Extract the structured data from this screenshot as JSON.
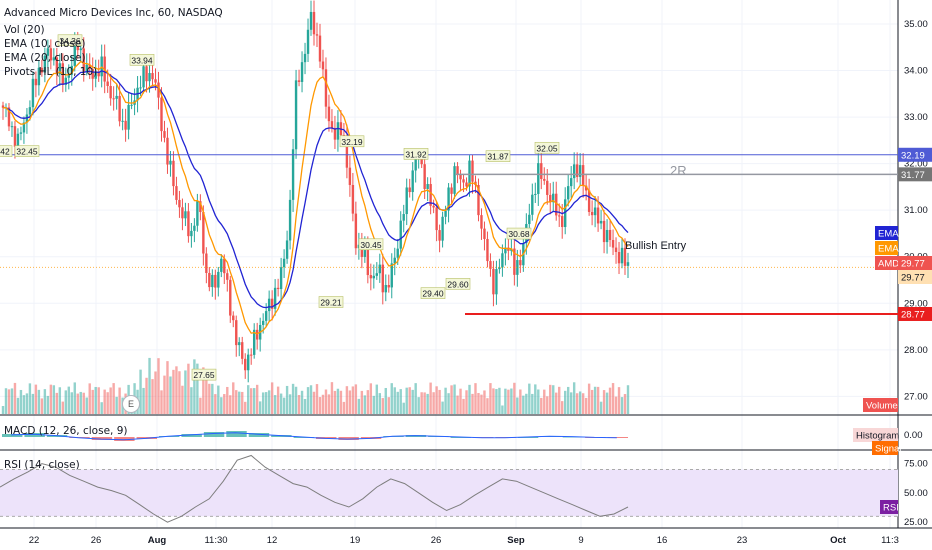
{
  "symbol_title": "Advanced Micro Devices Inc, 60, NASDAQ",
  "indicators": [
    "Vol (20)",
    "EMA (10, close)",
    "EMA (20, close)",
    "Pivots HL (10, 10)"
  ],
  "macd_label": "MACD (12, 26, close, 9)",
  "rsi_label": "RSI (14, close)",
  "annotations": {
    "bullish_entry": "Bullish Entry",
    "two_r": "2R",
    "earnings_marker": "E"
  },
  "tags": {
    "volume": "Volume",
    "histogram": "Histogram",
    "signal": "Signal",
    "rsi": "RSI",
    "ema_a": "EMA",
    "ema_b": "EMA",
    "amd": "AMD",
    "amd_price": "29.77",
    "price_2": "29.77",
    "resistance": "32.19",
    "two_r_price": "31.77",
    "stop": "28.77"
  },
  "colors": {
    "up": "#26a69a",
    "down": "#ef5350",
    "ema10": "#ff9800",
    "ema20": "#2124d3",
    "resistance_line": "#4f5bd5",
    "stop_line": "#e91e1e",
    "rsi_line": "#7e7e7e",
    "rsi_band": "#ede3fa"
  },
  "chart_data": [
    {
      "type": "line",
      "subtype": "candlestick",
      "title": "Advanced Micro Devices Inc, 60, NASDAQ",
      "x_ticks": [
        "22",
        "26",
        "Aug",
        "11:30",
        "12",
        "19",
        "26",
        "Sep",
        "9",
        "16",
        "23",
        "Oct",
        "11:3"
      ],
      "y_ticks": [
        "27.00",
        "28.00",
        "29.00",
        "30.00",
        "31.00",
        "32.00",
        "33.00",
        "34.00",
        "35.00"
      ],
      "ylim": [
        26.6,
        35.3
      ],
      "close_path": [
        33.2,
        32.8,
        32.45,
        33.0,
        33.6,
        34.1,
        34.36,
        34.2,
        33.7,
        34.1,
        34.6,
        34.0,
        33.9,
        34.1,
        33.6,
        33.3,
        32.8,
        33.2,
        33.7,
        33.9,
        33.94,
        32.9,
        32.0,
        31.3,
        30.8,
        30.5,
        31.2,
        29.6,
        29.3,
        30.0,
        29.1,
        28.2,
        27.65,
        28.0,
        28.5,
        28.8,
        29.2,
        29.6,
        30.8,
        33.8,
        34.3,
        35.25,
        34.4,
        33.2,
        32.5,
        32.9,
        31.5,
        30.2,
        30.0,
        29.5,
        29.7,
        29.21,
        30.0,
        30.8,
        31.6,
        32.19,
        31.7,
        31.0,
        30.45,
        31.2,
        31.9,
        31.5,
        31.92,
        31.2,
        30.2,
        29.4,
        29.8,
        30.4,
        29.6,
        30.2,
        31.0,
        31.87,
        31.5,
        31.2,
        30.68,
        31.4,
        32.05,
        31.6,
        31.0,
        30.8,
        30.5,
        30.2,
        30.0,
        29.8
      ],
      "pivots_high": [
        34.36,
        33.94,
        32.19,
        31.92,
        31.87,
        32.05
      ],
      "pivots_low": [
        32.45,
        27.65,
        29.21,
        30.45,
        29.4,
        29.6,
        30.68
      ],
      "pivot_prefix_left_edge": "42",
      "levels": {
        "resistance": 32.19,
        "target_2R": 31.77,
        "entry": 29.77,
        "stop": 28.77
      },
      "last_price": 29.77
    },
    {
      "type": "bar",
      "title": "MACD (12, 26, close, 9)",
      "y_ticks": [
        "0.00"
      ],
      "values": [
        0.3,
        0.4,
        0.2,
        -0.1,
        -0.3,
        -0.4,
        -0.2,
        0.1,
        0.3,
        0.5,
        0.6,
        0.4,
        0.2,
        0.0,
        -0.2,
        -0.3,
        -0.2,
        0.1,
        0.2,
        0.1,
        0.0,
        -0.1,
        -0.1,
        0.0,
        0.1,
        0.05,
        -0.05,
        -0.1
      ]
    },
    {
      "type": "line",
      "title": "RSI (14, close)",
      "y_ticks": [
        "75.00",
        "50.00",
        "25.00"
      ],
      "ylim": [
        20,
        85
      ],
      "band": [
        30,
        70
      ],
      "values": [
        55,
        62,
        68,
        75,
        72,
        65,
        60,
        55,
        52,
        48,
        40,
        32,
        25,
        30,
        38,
        45,
        60,
        78,
        82,
        72,
        65,
        58,
        55,
        48,
        42,
        38,
        45,
        55,
        62,
        58,
        50,
        42,
        35,
        40,
        48,
        55,
        62,
        60,
        55,
        50,
        45,
        40,
        35,
        30,
        32,
        38
      ]
    }
  ]
}
